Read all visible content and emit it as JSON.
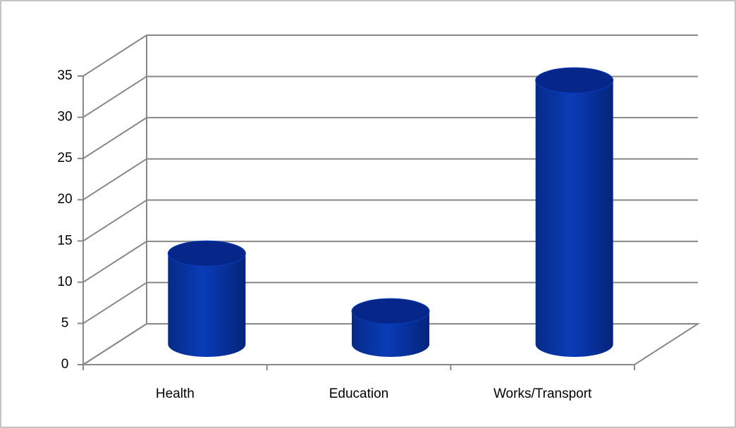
{
  "chart_data": {
    "type": "bar",
    "categories": [
      "Health",
      "Education",
      "Works/Transport"
    ],
    "values": [
      11,
      4,
      32
    ],
    "color": "#0a34a8",
    "ylim": [
      0,
      35
    ],
    "yticks": [
      0,
      5,
      10,
      15,
      20,
      25,
      30,
      35
    ],
    "grid": true
  }
}
